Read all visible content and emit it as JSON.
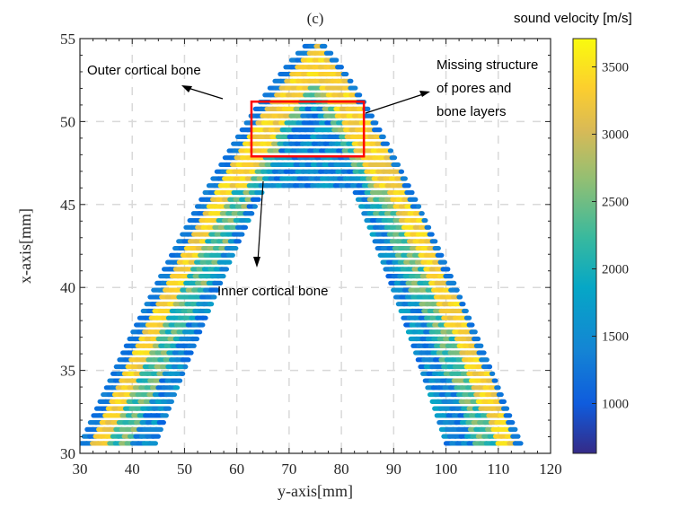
{
  "chart_data": {
    "type": "scatter",
    "title": "(c)",
    "xlabel": "y-axis[mm]",
    "ylabel": "x-axis[mm]",
    "xlim": [
      30,
      120
    ],
    "ylim": [
      30,
      55
    ],
    "xticks": [
      30,
      40,
      50,
      60,
      70,
      80,
      90,
      100,
      110,
      120
    ],
    "yticks": [
      30,
      35,
      40,
      45,
      50,
      55
    ],
    "grid": true,
    "colorbar": {
      "label": "sound velocity [m/s]",
      "colormap": "parula",
      "clim": [
        630,
        3710
      ],
      "ticks": [
        1000,
        1500,
        2000,
        2500,
        3000,
        3500
      ],
      "stops": [
        "#352a87",
        "#0363e1",
        "#1485d4",
        "#06a7c6",
        "#38b99e",
        "#92bf73",
        "#d9ba56",
        "#fcce2e",
        "#f9fb0e"
      ]
    },
    "description": "Arch-shaped cross-section of bone rendered as horizontal scatter rows colored by sound velocity; outer band ~3000-3500 m/s (yellow), interior ~1000-2000 m/s (blue).",
    "shape": {
      "apex": {
        "y_mm": 75,
        "x_mm": 55
      },
      "outer_left_base": {
        "y_mm": 30,
        "x_mm": 30.5
      },
      "outer_right_base": {
        "y_mm": 115,
        "x_mm": 30
      },
      "inner_top_x_mm": 46,
      "inner_top_y_range_mm": [
        60,
        90
      ]
    },
    "annotations": [
      {
        "text": "Outer cortical bone",
        "arrow_from": [
          56,
          52.8
        ],
        "arrow_to": [
          49,
          52
        ]
      },
      {
        "text": "Missing structure\nof pores and\nbone layers",
        "arrow_from": [
          85,
          50.3
        ],
        "arrow_to": [
          98,
          52
        ]
      },
      {
        "text": "Inner cortical bone",
        "arrow_from": [
          63,
          47
        ],
        "arrow_to": [
          62,
          41
        ]
      }
    ],
    "highlight_box": {
      "color": "#ff0000",
      "y_range_mm": [
        62.8,
        84.3
      ],
      "x_range_mm": [
        47.9,
        51.2
      ]
    }
  },
  "labels": {
    "title": "(c)",
    "xlabel": "y-axis[mm]",
    "ylabel": "x-axis[mm]",
    "colorbar_label": "sound velocity [m/s]",
    "annot_outer": "Outer cortical bone",
    "annot_missing_1": "Missing structure",
    "annot_missing_2": "of pores and",
    "annot_missing_3": "bone layers",
    "annot_inner": "Inner cortical bone"
  }
}
